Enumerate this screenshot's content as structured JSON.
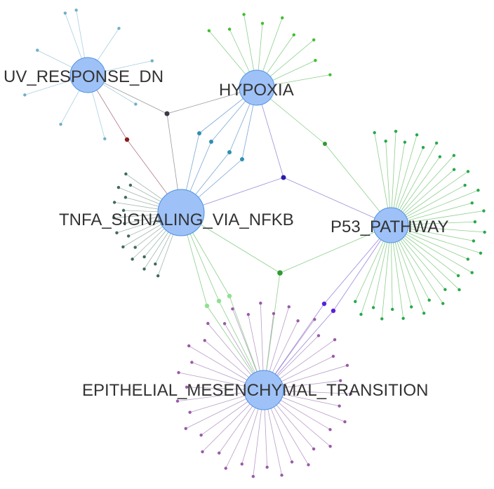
{
  "diagram": {
    "type": "gene-set network",
    "hubs": [
      {
        "id": "uv",
        "label": "UV_RESPONSE_DN",
        "color": "#9ec2f7",
        "stroke": "#4a90e2"
      },
      {
        "id": "hyp",
        "label": "HYPOXIA",
        "color": "#9ec2f7",
        "stroke": "#4a90e2"
      },
      {
        "id": "tnf",
        "label": "TNFA_SIGNALING_VIA_NFKB",
        "color": "#9ec2f7",
        "stroke": "#4a90e2"
      },
      {
        "id": "p53",
        "label": "P53_PATHWAY",
        "color": "#9ec2f7",
        "stroke": "#4a90e2"
      },
      {
        "id": "emt",
        "label": "EPITHELIAL_MESENCHYMAL_TRANSITION",
        "color": "#9ec2f7",
        "stroke": "#4a90e2"
      }
    ],
    "colors": {
      "uv_leaf": "#6fb0c7",
      "hyp_leaf": "#3fbf2f",
      "tnf_leaf": "#3e6b5c",
      "p53_leaf": "#2aa84a",
      "emt_leaf": "#9a5aa8",
      "edge_green": "#8ccf8c",
      "edge_purple": "#b99cc7",
      "edge_blue": "#7aa8d6",
      "edge_gray": "#999999",
      "shared_dark": "#3a3a44",
      "shared_red": "#8b1a1a",
      "shared_teal": "#2e8fb0",
      "shared_navy": "#2a1ab0",
      "shared_green": "#2f9a2f",
      "shared_light": "#8fe08f",
      "shared_violet": "#5a22d6"
    }
  }
}
